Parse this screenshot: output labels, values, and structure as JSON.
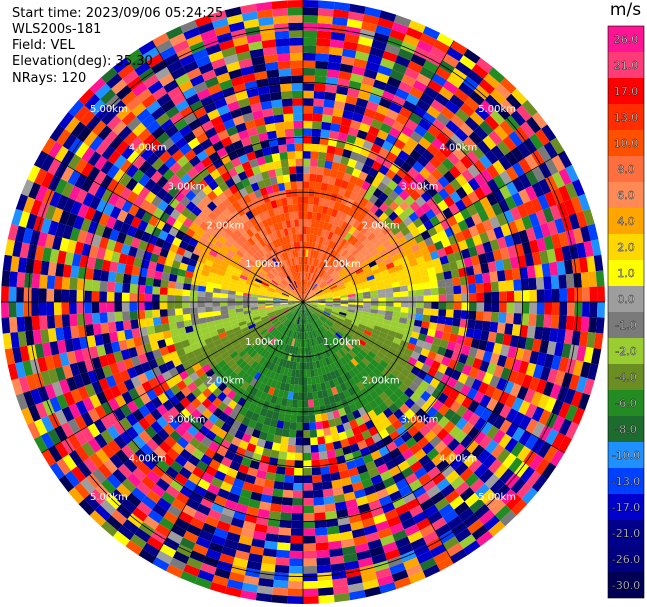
{
  "header": {
    "start_time": "Start time: 2023/09/06 05:24:25",
    "instrument": "WLS200s-181",
    "field": "Field: VEL",
    "elevation": "Elevation(deg): 35.30",
    "nrays": "NRays: 120"
  },
  "colorbar": {
    "unit": "m/s",
    "ticks": [
      "26.0",
      "21.0",
      "17.0",
      "13.0",
      "10.0",
      "8.0",
      "6.0",
      "4.0",
      "2.0",
      "1.0",
      "0.0",
      "-1.0",
      "-2.0",
      "-4.0",
      "-6.0",
      "-8.0",
      "-10.0",
      "-13.0",
      "-17.0",
      "-21.0",
      "-26.0",
      "-30.0"
    ],
    "colors": [
      "#ff1493",
      "#ff3c78",
      "#ff0000",
      "#ff2d00",
      "#ff5000",
      "#ff6e3c",
      "#ff8a55",
      "#ffa500",
      "#ffd700",
      "#ffff00",
      "#9e9e9e",
      "#7a7a7a",
      "#9acd32",
      "#6b8e23",
      "#228b22",
      "#1e6b2e",
      "#1e90ff",
      "#0040ff",
      "#0000cd",
      "#00008b",
      "#000080",
      "#000055"
    ]
  },
  "chart_data": {
    "type": "heatmap",
    "subtype": "radar-ppi",
    "nrays": 120,
    "range_rings_km": [
      1.0,
      2.0,
      3.0,
      4.0,
      5.0
    ],
    "ring_labels": {
      "1": "1.00km",
      "2": "2.00km",
      "3": "3.00km",
      "4": "4.00km",
      "5": "5.00km"
    },
    "spokes_deg": [
      0,
      30,
      60,
      90,
      120,
      150,
      180,
      210,
      240,
      270,
      300,
      330
    ],
    "max_range_km": 5.5,
    "value_range": [
      -30.0,
      30.0
    ],
    "pattern": {
      "near_field_km": 2.3,
      "north_sector_peak_ms": 12.0,
      "south_sector_peak_ms": -6.0,
      "far_field": "noise (random values)"
    }
  }
}
